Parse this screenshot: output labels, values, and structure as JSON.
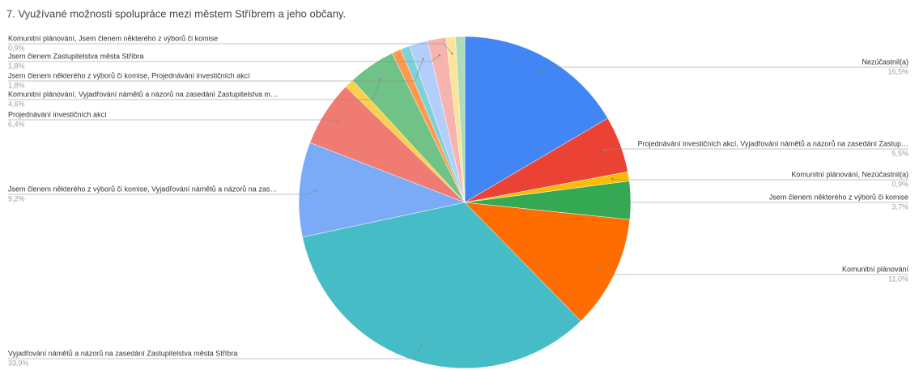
{
  "chart_data": {
    "type": "pie",
    "title": "7. Využívané možnosti spolupráce mezi městem Stříbrem a jeho občany.",
    "categories": [
      "Nezúčastnil(a)",
      "Projednávání investičních akcí, Vyjadřování námětů a názorů na zasedání Zastup…",
      "Komunitní plánování, Nezúčastnil(a)",
      "Jsem členem některého z výborů či komise",
      "Komunitní plánování",
      "Vyjadřování námětů a názorů na zasedání Zastupitelstva města Stříbra",
      "Jsem členem některého z výborů či komise, Vyjadřování námětů a názorů na zas…",
      "Projednávání investičních akcí",
      null,
      "Komunitní plánování, Vyjadřování námětů a názorů na zasedání Zastupitelstva m…",
      null,
      null,
      "Jsem členem některého z výborů či komise, Projednávání investičních akcí",
      "Jsem členem Zastupitelstva města Stříbra",
      "Komunitní plánování, Jsem členem některého z výborů či komise",
      null
    ],
    "values": [
      16.5,
      5.5,
      0.9,
      3.7,
      11.0,
      33.9,
      9.2,
      6.4,
      0.9,
      4.6,
      0.9,
      0.9,
      1.8,
      1.8,
      0.9,
      0.9
    ],
    "value_labels": [
      "16,5%",
      "5,5%",
      "0,9%",
      "3,7%",
      "11,0%",
      "33,9%",
      "9,2%",
      "6,4%",
      null,
      "4,6%",
      null,
      null,
      "1,8%",
      "1,8%",
      "0,9%",
      null
    ],
    "colors": [
      "#4285f4",
      "#ea4335",
      "#fbbc04",
      "#34a853",
      "#ff6d01",
      "#46bdc6",
      "#7baaf7",
      "#f07b72",
      "#fcd04f",
      "#71c287",
      "#ff994d",
      "#7ed1d7",
      "#b3cefb",
      "#f7b4ae",
      "#fde49b",
      "#aedcba"
    ]
  }
}
